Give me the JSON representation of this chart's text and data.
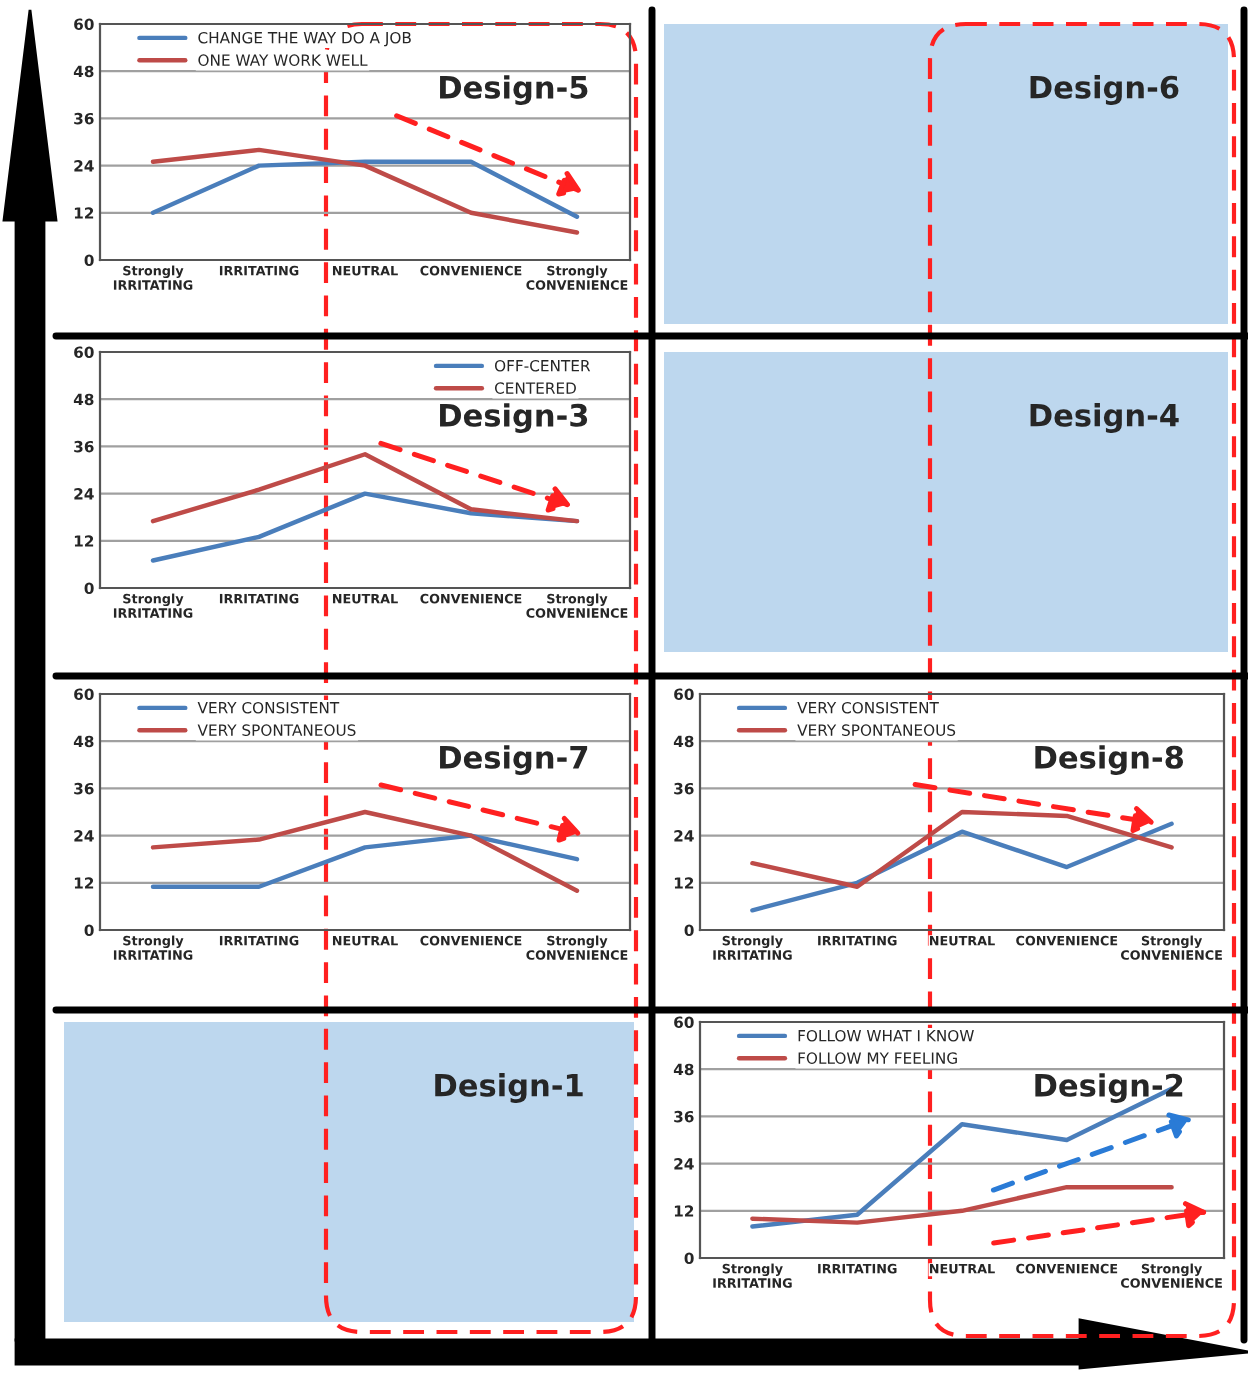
{
  "chart_data": [
    {
      "type": "line",
      "title": "Design-5",
      "categories": [
        "Strongly\nIRRITATING",
        "IRRITATING",
        "NEUTRAL",
        "CONVENIENCE",
        "Strongly\nCONVENIENCE"
      ],
      "ylim": [
        0,
        60
      ],
      "yticks": [
        0,
        12,
        24,
        36,
        48,
        60
      ],
      "grid": "y",
      "legend": "top left",
      "series": [
        {
          "name": "CHANGE THE WAY DO A JOB",
          "color": "#4a7ebb",
          "values": [
            12,
            24,
            25,
            25,
            11
          ]
        },
        {
          "name": "ONE WAY WORK WELL",
          "color": "#be4b48",
          "values": [
            25,
            28,
            24,
            12,
            7
          ]
        }
      ]
    },
    {
      "type": "other",
      "title": "Design-6"
    },
    {
      "type": "line",
      "title": "Design-3",
      "categories": [
        "Strongly\nIRRITATING",
        "IRRITATING",
        "NEUTRAL",
        "CONVENIENCE",
        "Strongly\nCONVENIENCE"
      ],
      "ylim": [
        0,
        60
      ],
      "yticks": [
        0,
        12,
        24,
        36,
        48,
        60
      ],
      "grid": "y",
      "legend": "top right",
      "series": [
        {
          "name": "OFF-CENTER",
          "color": "#4a7ebb",
          "values": [
            7,
            13,
            24,
            19,
            17
          ]
        },
        {
          "name": "CENTERED",
          "color": "#be4b48",
          "values": [
            17,
            25,
            34,
            20,
            17
          ]
        }
      ]
    },
    {
      "type": "other",
      "title": "Design-4"
    },
    {
      "type": "line",
      "title": "Design-7",
      "categories": [
        "Strongly\nIRRITATING",
        "IRRITATING",
        "NEUTRAL",
        "CONVENIENCE",
        "Strongly\nCONVENIENCE"
      ],
      "ylim": [
        0,
        60
      ],
      "yticks": [
        0,
        12,
        24,
        36,
        48,
        60
      ],
      "grid": "y",
      "legend": "top left",
      "series": [
        {
          "name": "VERY CONSISTENT",
          "color": "#4a7ebb",
          "values": [
            11,
            11,
            21,
            24,
            18
          ]
        },
        {
          "name": "VERY SPONTANEOUS",
          "color": "#be4b48",
          "values": [
            21,
            23,
            30,
            24,
            10
          ]
        }
      ]
    },
    {
      "type": "line",
      "title": "Design-8",
      "categories": [
        "Strongly\nIRRITATING",
        "IRRITATING",
        "NEUTRAL",
        "CONVENIENCE",
        "Strongly\nCONVENIENCE"
      ],
      "ylim": [
        0,
        60
      ],
      "yticks": [
        0,
        12,
        24,
        36,
        48,
        60
      ],
      "grid": "y",
      "legend": "top left",
      "series": [
        {
          "name": "VERY CONSISTENT",
          "color": "#4a7ebb",
          "values": [
            5,
            12,
            25,
            16,
            27
          ]
        },
        {
          "name": "VERY SPONTANEOUS",
          "color": "#be4b48",
          "values": [
            17,
            11,
            30,
            29,
            21
          ]
        }
      ]
    },
    {
      "type": "other",
      "title": "Design-1"
    },
    {
      "type": "line",
      "title": "Design-2",
      "categories": [
        "Strongly\nIRRITATING",
        "IRRITATING",
        "NEUTRAL",
        "CONVENIENCE",
        "Strongly\nCONVENIENCE"
      ],
      "ylim": [
        0,
        60
      ],
      "yticks": [
        0,
        12,
        24,
        36,
        48,
        60
      ],
      "grid": "y",
      "legend": "top left",
      "series": [
        {
          "name": "FOLLOW WHAT I KNOW",
          "color": "#4a7ebb",
          "values": [
            8,
            11,
            34,
            30,
            43
          ]
        },
        {
          "name": "FOLLOW MY FEELING",
          "color": "#be4b48",
          "values": [
            10,
            9,
            12,
            18,
            18
          ]
        }
      ]
    }
  ]
}
